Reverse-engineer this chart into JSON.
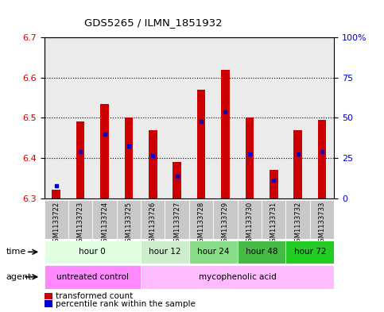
{
  "title": "GDS5265 / ILMN_1851932",
  "samples": [
    "GSM1133722",
    "GSM1133723",
    "GSM1133724",
    "GSM1133725",
    "GSM1133726",
    "GSM1133727",
    "GSM1133728",
    "GSM1133729",
    "GSM1133730",
    "GSM1133731",
    "GSM1133732",
    "GSM1133733"
  ],
  "bar_base": 6.3,
  "bar_tops": [
    6.32,
    6.49,
    6.535,
    6.5,
    6.47,
    6.39,
    6.57,
    6.62,
    6.5,
    6.37,
    6.47,
    6.495
  ],
  "percentile_values": [
    6.33,
    6.415,
    6.46,
    6.43,
    6.405,
    6.355,
    6.49,
    6.515,
    6.41,
    6.345,
    6.41,
    6.415
  ],
  "ylim": [
    6.3,
    6.7
  ],
  "yticks_left": [
    6.3,
    6.4,
    6.5,
    6.6,
    6.7
  ],
  "yticks_right": [
    0,
    25,
    50,
    75,
    100
  ],
  "bar_color": "#cc0000",
  "percentile_color": "#0000cc",
  "grid_color": "#000000",
  "time_groups": [
    {
      "label": "hour 0",
      "start": 0,
      "end": 4,
      "color": "#e0ffe0"
    },
    {
      "label": "hour 12",
      "start": 4,
      "end": 6,
      "color": "#cceecc"
    },
    {
      "label": "hour 24",
      "start": 6,
      "end": 8,
      "color": "#88dd88"
    },
    {
      "label": "hour 48",
      "start": 8,
      "end": 10,
      "color": "#44bb44"
    },
    {
      "label": "hour 72",
      "start": 10,
      "end": 12,
      "color": "#22cc22"
    }
  ],
  "agent_groups": [
    {
      "label": "untreated control",
      "start": 0,
      "end": 4,
      "color": "#ff88ff"
    },
    {
      "label": "mycophenolic acid",
      "start": 4,
      "end": 12,
      "color": "#ffbbff"
    }
  ],
  "agent_row_color_left": "#ff88ff",
  "agent_row_color_right": "#ffbbff",
  "background_color": "#ffffff",
  "plot_bg_color": "#ffffff",
  "tick_label_color_left": "#cc0000",
  "tick_label_color_right": "#0000cc",
  "bar_width": 0.35,
  "sample_bg_color": "#c8c8c8"
}
